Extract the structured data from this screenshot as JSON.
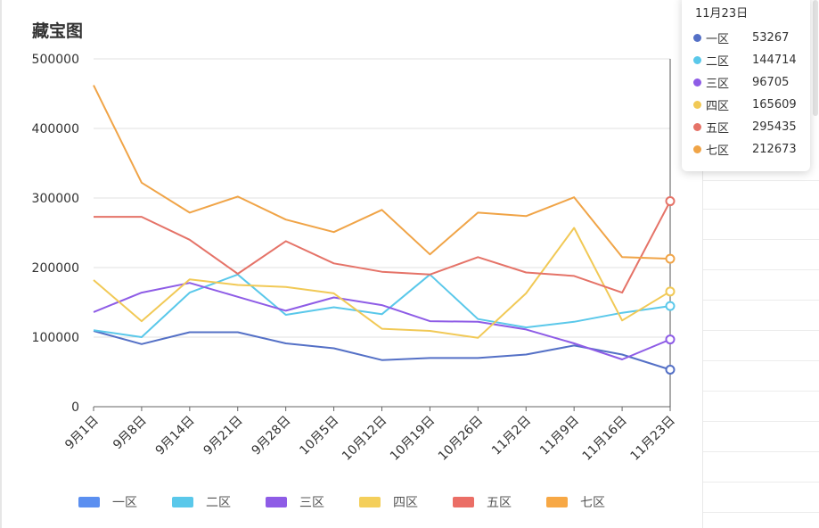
{
  "chart_data": {
    "type": "line",
    "title": "藏宝图",
    "categories": [
      "9月1日",
      "9月8日",
      "9月14日",
      "9月21日",
      "9月28日",
      "10月5日",
      "10月12日",
      "10月19日",
      "10月26日",
      "11月2日",
      "11月9日",
      "11月16日",
      "11月23日"
    ],
    "ylim": [
      0,
      500000
    ],
    "yticks": [
      0,
      100000,
      200000,
      300000,
      400000,
      500000
    ],
    "grid": true,
    "legend_position": "bottom",
    "series": [
      {
        "name": "一区",
        "color": "#5470c6",
        "values": [
          109000,
          90000,
          107000,
          107000,
          91000,
          84000,
          67000,
          70000,
          70000,
          75000,
          88000,
          75000,
          53267
        ]
      },
      {
        "name": "二区",
        "color": "#5ac8ea",
        "values": [
          110000,
          100000,
          164000,
          190000,
          132000,
          143000,
          133000,
          190000,
          126000,
          114000,
          122000,
          135000,
          144714
        ]
      },
      {
        "name": "三区",
        "color": "#8e5ce6",
        "values": [
          136000,
          164000,
          178000,
          158000,
          138000,
          157000,
          146000,
          123000,
          122000,
          111000,
          91000,
          68000,
          96705
        ]
      },
      {
        "name": "四区",
        "color": "#f1c956",
        "values": [
          182000,
          123000,
          183000,
          175000,
          172000,
          163000,
          112000,
          109000,
          99000,
          163000,
          257000,
          124000,
          165609
        ]
      },
      {
        "name": "五区",
        "color": "#e57368",
        "values": [
          273000,
          273000,
          240000,
          191000,
          238000,
          206000,
          194000,
          190000,
          215000,
          193000,
          188000,
          164000,
          295435
        ]
      },
      {
        "name": "七区",
        "color": "#f0a447",
        "values": [
          462000,
          322000,
          279000,
          302000,
          269000,
          251000,
          283000,
          219000,
          279000,
          274000,
          301000,
          215000,
          212673
        ]
      }
    ]
  },
  "tooltip": {
    "title": "11月23日",
    "rows": [
      {
        "name": "一区",
        "value": "53267",
        "color": "#5470c6"
      },
      {
        "name": "二区",
        "value": "144714",
        "color": "#5ac8ea"
      },
      {
        "name": "三区",
        "value": "96705",
        "color": "#8e5ce6"
      },
      {
        "name": "四区",
        "value": "165609",
        "color": "#f1c956"
      },
      {
        "name": "五区",
        "value": "295435",
        "color": "#e57368"
      },
      {
        "name": "七区",
        "value": "212673",
        "color": "#f0a447"
      }
    ]
  },
  "legend": {
    "items": [
      {
        "name": "一区",
        "color": "#5b8ff0"
      },
      {
        "name": "二区",
        "color": "#5ac8ea"
      },
      {
        "name": "三区",
        "color": "#8e5ce6"
      },
      {
        "name": "四区",
        "color": "#f4cf5b"
      },
      {
        "name": "五区",
        "color": "#eb6e66"
      },
      {
        "name": "七区",
        "color": "#f7a845"
      }
    ]
  }
}
